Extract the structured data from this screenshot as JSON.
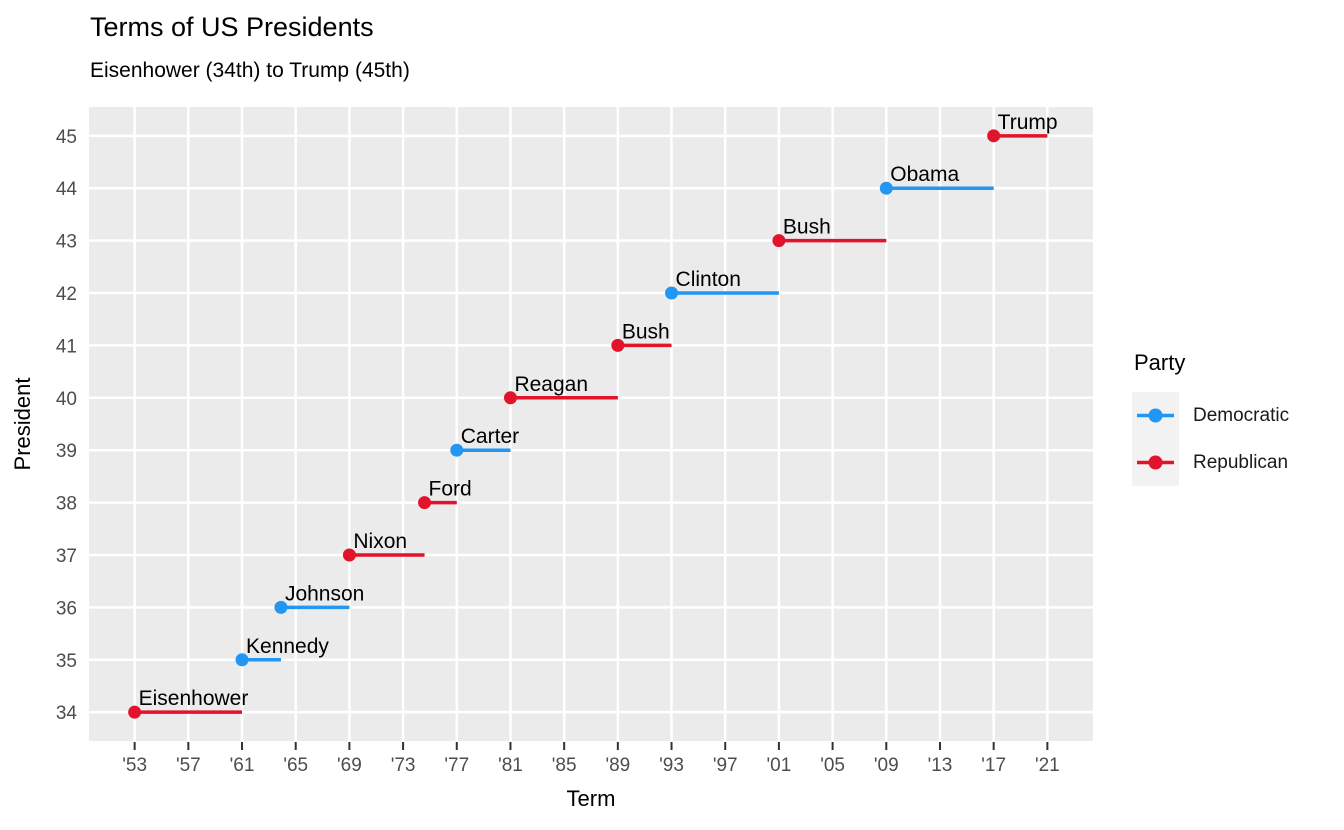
{
  "title": "Terms of US Presidents",
  "subtitle": "Eisenhower (34th) to Trump (45th)",
  "legend": {
    "title": "Party",
    "items": [
      {
        "label": "Democratic",
        "color": "#2196F3"
      },
      {
        "label": "Republican",
        "color": "#E1142B"
      }
    ]
  },
  "colors": {
    "background": "#FFFFFF",
    "panel_bg": "#EBEBEB",
    "gridline": "#FFFFFF",
    "tick_mark": "#333333",
    "axis_text": "#4D4D4D",
    "text": "#000000",
    "legend_key_bg": "#F2F2F2"
  },
  "chart_data": {
    "type": "line",
    "variant": "horizontal-segments-with-start-points",
    "title": "Terms of US Presidents",
    "subtitle": "Eisenhower (34th) to Trump (45th)",
    "xlabel": "Term",
    "ylabel": "President",
    "xlim": [
      1949.6,
      2024.4
    ],
    "ylim": [
      33.45,
      45.55
    ],
    "grid": "major-only-white-on-grey",
    "legend_position": "right",
    "x_ticks": [
      {
        "year": 1953,
        "label": "'53"
      },
      {
        "year": 1957,
        "label": "'57"
      },
      {
        "year": 1961,
        "label": "'61"
      },
      {
        "year": 1965,
        "label": "'65"
      },
      {
        "year": 1969,
        "label": "'69"
      },
      {
        "year": 1973,
        "label": "'73"
      },
      {
        "year": 1977,
        "label": "'77"
      },
      {
        "year": 1981,
        "label": "'81"
      },
      {
        "year": 1985,
        "label": "'85"
      },
      {
        "year": 1989,
        "label": "'89"
      },
      {
        "year": 1993,
        "label": "'93"
      },
      {
        "year": 1997,
        "label": "'97"
      },
      {
        "year": 2001,
        "label": "'01"
      },
      {
        "year": 2005,
        "label": "'05"
      },
      {
        "year": 2009,
        "label": "'09"
      },
      {
        "year": 2013,
        "label": "'13"
      },
      {
        "year": 2017,
        "label": "'17"
      },
      {
        "year": 2021,
        "label": "'21"
      }
    ],
    "y_ticks": [
      34,
      35,
      36,
      37,
      38,
      39,
      40,
      41,
      42,
      43,
      44,
      45
    ],
    "presidents": [
      {
        "number": 34,
        "name": "Eisenhower",
        "party": "Republican",
        "term_start": 1953,
        "term_end": 1961
      },
      {
        "number": 35,
        "name": "Kennedy",
        "party": "Democratic",
        "term_start": 1961,
        "term_end": 1963.9
      },
      {
        "number": 36,
        "name": "Johnson",
        "party": "Democratic",
        "term_start": 1963.9,
        "term_end": 1969
      },
      {
        "number": 37,
        "name": "Nixon",
        "party": "Republican",
        "term_start": 1969,
        "term_end": 1974.6
      },
      {
        "number": 38,
        "name": "Ford",
        "party": "Republican",
        "term_start": 1974.6,
        "term_end": 1977
      },
      {
        "number": 39,
        "name": "Carter",
        "party": "Democratic",
        "term_start": 1977,
        "term_end": 1981
      },
      {
        "number": 40,
        "name": "Reagan",
        "party": "Republican",
        "term_start": 1981,
        "term_end": 1989
      },
      {
        "number": 41,
        "name": "Bush",
        "party": "Republican",
        "term_start": 1989,
        "term_end": 1993
      },
      {
        "number": 42,
        "name": "Clinton",
        "party": "Democratic",
        "term_start": 1993,
        "term_end": 2001
      },
      {
        "number": 43,
        "name": "Bush",
        "party": "Republican",
        "term_start": 2001,
        "term_end": 2009
      },
      {
        "number": 44,
        "name": "Obama",
        "party": "Democratic",
        "term_start": 2009,
        "term_end": 2017
      },
      {
        "number": 45,
        "name": "Trump",
        "party": "Republican",
        "term_start": 2017,
        "term_end": 2021
      }
    ]
  }
}
